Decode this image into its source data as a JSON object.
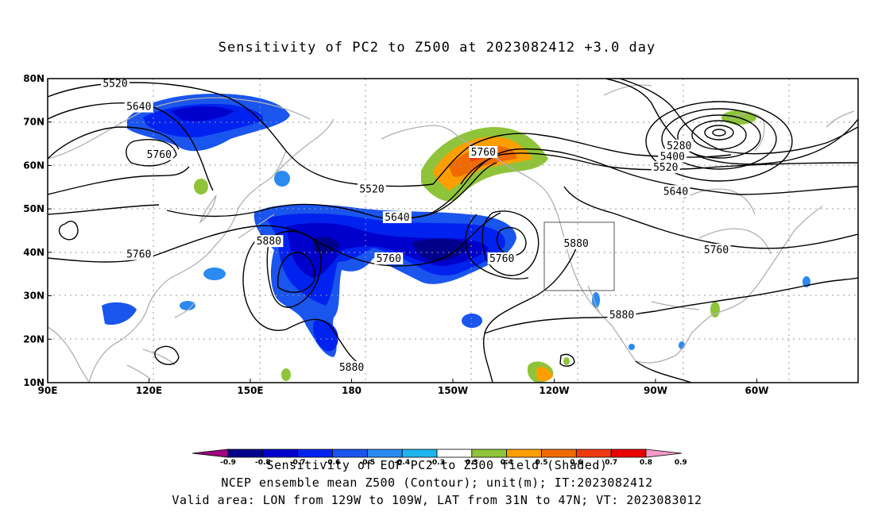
{
  "title": "Sensitivity of PC2 to Z500 at 2023082412 +3.0 day",
  "axes": {
    "lon_ticks": [
      "90E",
      "120E",
      "150E",
      "180",
      "150W",
      "120W",
      "90W",
      "60W"
    ],
    "lat_ticks": [
      "80N",
      "70N",
      "60N",
      "50N",
      "40N",
      "30N",
      "20N",
      "10N"
    ]
  },
  "contours": {
    "labels": [
      {
        "text": "5520",
        "lon": 110,
        "lat": 78.8
      },
      {
        "text": "5640",
        "lon": 117,
        "lat": 73.5
      },
      {
        "text": "5760",
        "lon": 123,
        "lat": 62.5
      },
      {
        "text": "5760",
        "lon": 117,
        "lat": 39.5
      },
      {
        "text": "5880",
        "lon": 155.5,
        "lat": 42.5
      },
      {
        "text": "5880",
        "lon": 180,
        "lat": 13.5
      },
      {
        "text": "5520",
        "lon": -174,
        "lat": 54.5
      },
      {
        "text": "5640",
        "lon": -166.5,
        "lat": 48
      },
      {
        "text": "5760",
        "lon": -169,
        "lat": 38.5
      },
      {
        "text": "5760",
        "lon": -141,
        "lat": 63
      },
      {
        "text": "5760",
        "lon": -135.5,
        "lat": 38.5
      },
      {
        "text": "5880",
        "lon": -113.5,
        "lat": 42
      },
      {
        "text": "5880",
        "lon": -100,
        "lat": 25.5
      },
      {
        "text": "5760",
        "lon": -72,
        "lat": 40.5
      },
      {
        "text": "5640",
        "lon": -84,
        "lat": 54
      },
      {
        "text": "5520",
        "lon": -87,
        "lat": 59.5
      },
      {
        "text": "5400",
        "lon": -85,
        "lat": 62
      },
      {
        "text": "5280",
        "lon": -83,
        "lat": 64.5
      }
    ]
  },
  "valid_box": {
    "lon_min": -129,
    "lon_max": -109,
    "lat_min": 31,
    "lat_max": 47
  },
  "colorbar": {
    "colors": [
      "#a0007f",
      "#00008b",
      "#0000cd",
      "#0022ee",
      "#1a55ee",
      "#2a8af0",
      "#1eb4ee",
      "#ffffff",
      "#8fc43a",
      "#ff9e00",
      "#f06a00",
      "#ee3a10",
      "#e80000",
      "#f49bc8"
    ],
    "labels": [
      "-0.9",
      "-0.8",
      "-0.7",
      "-0.6",
      "-0.5",
      "-0.4",
      "-0.3",
      "0.3",
      "0.4",
      "0.5",
      "0.6",
      "0.7",
      "0.8",
      "0.9"
    ]
  },
  "caption": {
    "line1": "Sensitivity of EOF PC2 to Z500 field (Shaded)",
    "line2": "NCEP ensemble mean Z500 (Contour); unit(m); IT:2023082412",
    "line3": "Valid area: LON from 129W to 109W, LAT from 31N to 47N; VT: 2023083012"
  }
}
